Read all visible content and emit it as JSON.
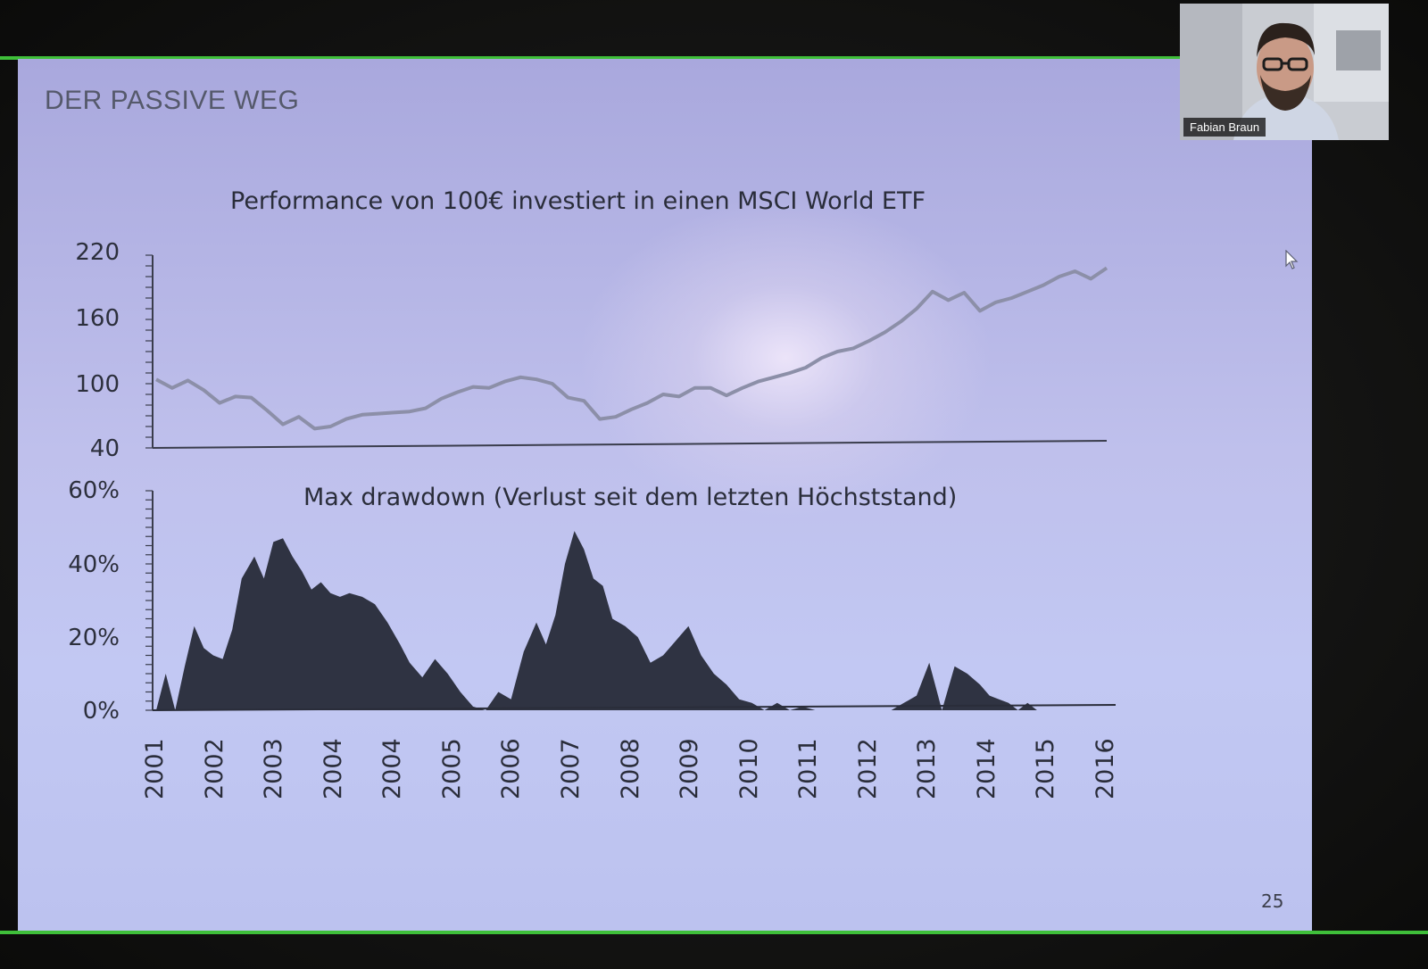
{
  "slide": {
    "title": "DER PASSIVE WEG",
    "page_number": "25"
  },
  "participant": {
    "name": "Fabian Braun"
  },
  "colors": {
    "performance_line": "#8c8fa8",
    "drawdown_fill": "#2f3342",
    "border_accent": "#3fbf3a"
  },
  "icons": {
    "cursor": "mouse-pointer-icon"
  },
  "chart_data": [
    {
      "type": "line",
      "title": "Performance von 100€ investiert in einen MSCI World ETF",
      "ylim": [
        40,
        220
      ],
      "y_ticks": [
        "220",
        "160",
        "100",
        "40"
      ],
      "x": [
        2001.0,
        2001.25,
        2001.5,
        2001.75,
        2002.0,
        2002.25,
        2002.5,
        2002.75,
        2003.0,
        2003.25,
        2003.5,
        2003.75,
        2004.0,
        2004.25,
        2004.5,
        2004.75,
        2005.0,
        2005.25,
        2005.5,
        2005.75,
        2006.0,
        2006.25,
        2006.5,
        2006.75,
        2007.0,
        2007.25,
        2007.5,
        2007.75,
        2008.0,
        2008.25,
        2008.5,
        2008.75,
        2009.0,
        2009.25,
        2009.5,
        2009.75,
        2010.0,
        2010.25,
        2010.5,
        2010.75,
        2011.0,
        2011.25,
        2011.5,
        2011.75,
        2012.0,
        2012.25,
        2012.5,
        2012.75,
        2013.0,
        2013.25,
        2013.5,
        2013.75,
        2014.0,
        2014.25,
        2014.5,
        2014.75,
        2015.0,
        2015.25,
        2015.5,
        2015.75,
        2016.0
      ],
      "series": [
        {
          "values": [
            104,
            96,
            103,
            94,
            82,
            88,
            87,
            75,
            62,
            69,
            58,
            60,
            67,
            71,
            72,
            73,
            74,
            77,
            86,
            92,
            97,
            96,
            102,
            106,
            104,
            100,
            87,
            84,
            67,
            69,
            76,
            82,
            90,
            88,
            96,
            96,
            89,
            96,
            102,
            106,
            110,
            115,
            124,
            130,
            133,
            140,
            148,
            158,
            170,
            186,
            178,
            185,
            168,
            176,
            180,
            186,
            192,
            200,
            205,
            198,
            208
          ]
        }
      ]
    },
    {
      "type": "area",
      "title": "Max drawdown (Verlust seit dem letzten Höchststand)",
      "ylim": [
        0,
        60
      ],
      "y_ticks": [
        "60%",
        "40%",
        "20%",
        "0%"
      ],
      "x_ticks": [
        "2001",
        "2002",
        "2003",
        "2004",
        "2004",
        "2005",
        "2006",
        "2007",
        "2008",
        "2009",
        "2010",
        "2011",
        "2012",
        "2013",
        "2014",
        "2015",
        "2016"
      ],
      "x": [
        2001.0,
        2001.15,
        2001.3,
        2001.45,
        2001.6,
        2001.75,
        2001.9,
        2002.05,
        2002.2,
        2002.35,
        2002.55,
        2002.7,
        2002.85,
        2003.0,
        2003.15,
        2003.3,
        2003.45,
        2003.6,
        2003.75,
        2003.9,
        2004.05,
        2004.25,
        2004.45,
        2004.65,
        2004.85,
        2005.0,
        2005.2,
        2005.4,
        2005.6,
        2005.8,
        2006.0,
        2006.2,
        2006.4,
        2006.6,
        2006.8,
        2007.0,
        2007.15,
        2007.3,
        2007.45,
        2007.6,
        2007.75,
        2007.9,
        2008.05,
        2008.2,
        2008.4,
        2008.6,
        2008.8,
        2009.0,
        2009.2,
        2009.4,
        2009.6,
        2009.8,
        2010.0,
        2010.2,
        2010.4,
        2010.6,
        2010.8,
        2011.0,
        2011.2,
        2011.4,
        2011.6,
        2011.8,
        2012.0,
        2012.2,
        2012.4,
        2012.6,
        2012.8,
        2013.0,
        2013.2,
        2013.4,
        2013.6,
        2013.8,
        2014.0,
        2014.15,
        2014.3,
        2014.45,
        2014.6,
        2014.75,
        2014.9,
        2015.05,
        2015.2,
        2015.35,
        2015.5,
        2015.65,
        2015.8,
        2016.0
      ],
      "series": [
        {
          "values": [
            0,
            10,
            0,
            12,
            23,
            17,
            15,
            14,
            22,
            36,
            42,
            36,
            46,
            47,
            42,
            38,
            33,
            35,
            32,
            31,
            32,
            31,
            29,
            24,
            18,
            13,
            9,
            14,
            10,
            5,
            1,
            0,
            5,
            3,
            16,
            24,
            18,
            26,
            40,
            49,
            44,
            36,
            34,
            25,
            23,
            20,
            13,
            15,
            19,
            23,
            15,
            10,
            7,
            3,
            2,
            0,
            2,
            0,
            1,
            0,
            0,
            0,
            0,
            0,
            0,
            0,
            2,
            4,
            13,
            0,
            12,
            10,
            7,
            4,
            3,
            2,
            0,
            2,
            0,
            0,
            0,
            0,
            0,
            0,
            0,
            0
          ]
        }
      ]
    }
  ]
}
